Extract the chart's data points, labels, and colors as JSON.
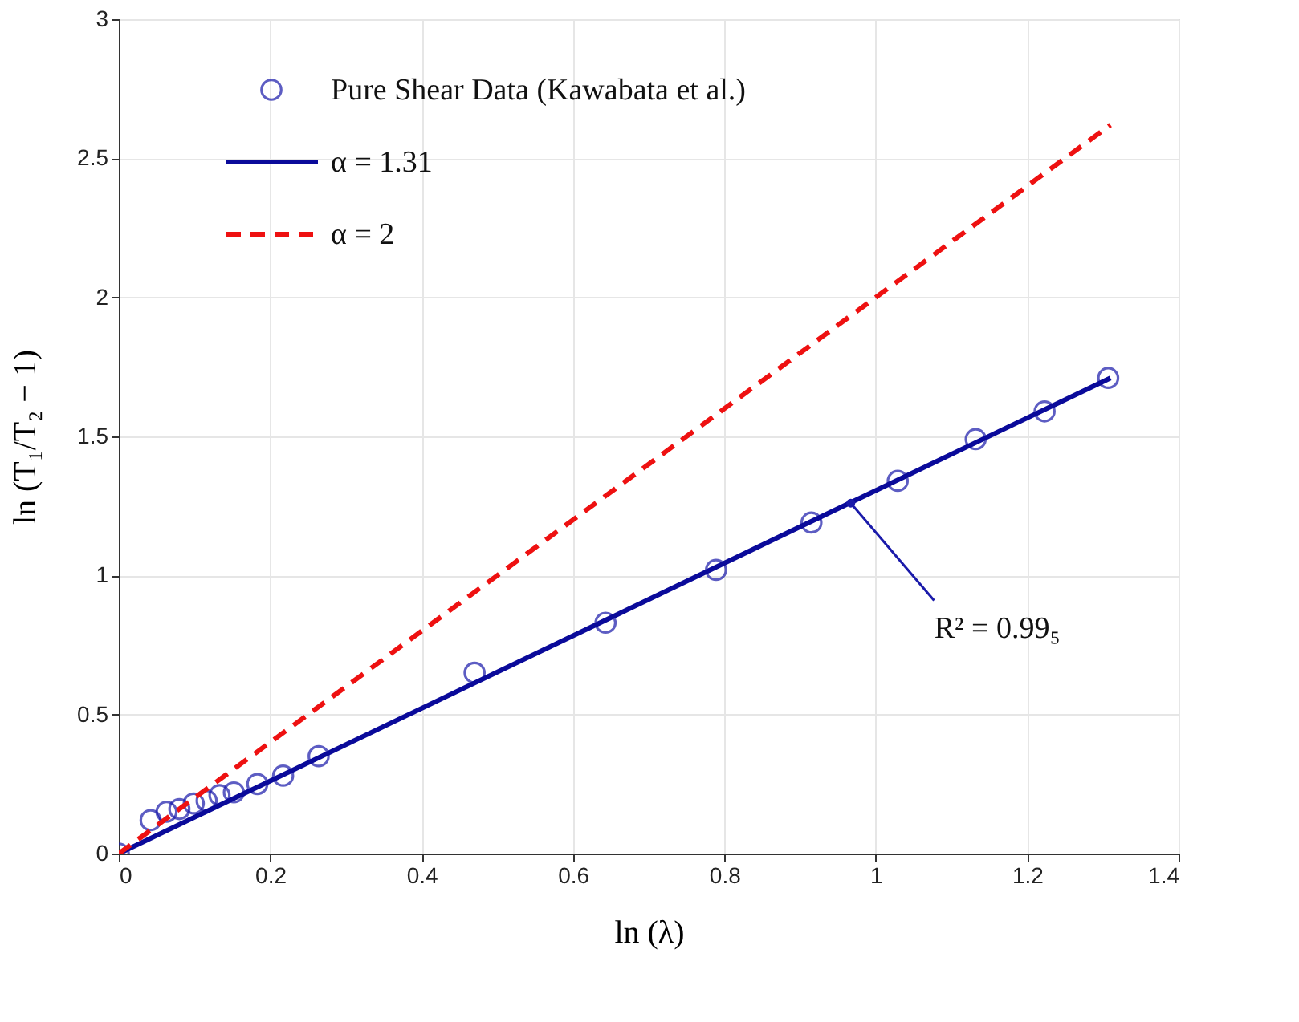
{
  "chart_data": {
    "type": "scatter",
    "xlabel": "ln (λ)",
    "ylabel": "ln (T₁/T₂ − 1)",
    "xlim": [
      0,
      1.4
    ],
    "xticks": [
      0,
      0.2,
      0.4,
      0.6,
      0.8,
      1,
      1.2,
      1.4
    ],
    "ylim": [
      0,
      3
    ],
    "yticks": [
      0,
      0.5,
      1,
      1.5,
      2,
      2.5,
      3
    ],
    "grid": true,
    "legend": "top left",
    "series": [
      {
        "name": "Pure Shear Data (Kawabata et al.)",
        "marker": "circle",
        "color": "#1a1aaa",
        "x": [
          0,
          0.042,
          0.063,
          0.08,
          0.099,
          0.116,
          0.133,
          0.152,
          0.183,
          0.217,
          0.264,
          0.47,
          0.643,
          0.789,
          0.915,
          1.029,
          1.132,
          1.223,
          1.307
        ],
        "values": [
          0,
          0.12,
          0.15,
          0.16,
          0.18,
          0.19,
          0.21,
          0.22,
          0.25,
          0.28,
          0.35,
          0.65,
          0.83,
          1.02,
          1.19,
          1.34,
          1.49,
          1.59,
          1.71
        ]
      },
      {
        "name": "α = 1.31",
        "type": "line",
        "line_style": "solid",
        "color": "#0a0a9a",
        "x": [
          0,
          1.31
        ],
        "values": [
          0,
          1.71
        ]
      },
      {
        "name": "α = 2",
        "type": "line",
        "line_style": "dashed",
        "color": "#ee1111",
        "x": [
          0,
          1.31
        ],
        "values": [
          0,
          2.62
        ]
      }
    ],
    "annotations": [
      {
        "text": "R² = 0.99₅",
        "x": 0.967,
        "y": 1.26
      }
    ]
  }
}
